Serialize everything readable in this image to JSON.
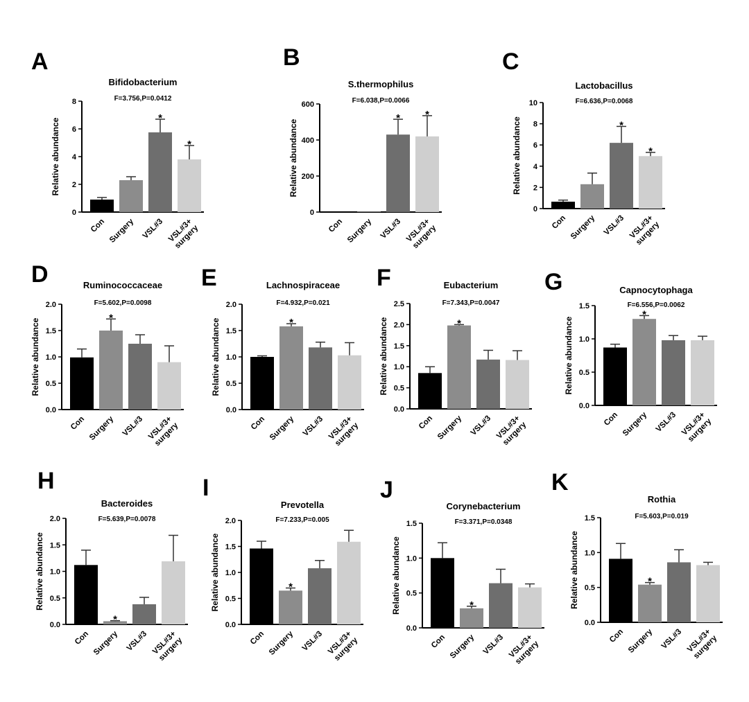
{
  "figure": {
    "bar_colors": [
      "#000000",
      "#8c8c8c",
      "#6e6e6e",
      "#cfcfcf"
    ],
    "error_bar_color": "#333333",
    "axis_color": "#000000"
  },
  "chart_data": [
    {
      "panel": "A",
      "type": "bar",
      "title": "Bifidobacterium",
      "subtitle": "F=3.756,P=0.0412",
      "ylabel": "Relative abundance",
      "ylim": [
        0,
        8
      ],
      "yticks": [
        "0",
        "2",
        "4",
        "6",
        "8"
      ],
      "categories": [
        "Con",
        "Surgery",
        "VSL#3",
        "VSL#3+ surgery"
      ],
      "values": [
        0.9,
        2.3,
        5.75,
        3.8
      ],
      "errors": [
        0.15,
        0.25,
        0.95,
        1.0
      ],
      "significant": [
        false,
        false,
        true,
        true
      ]
    },
    {
      "panel": "B",
      "type": "bar",
      "title": "S.thermophilus",
      "subtitle": "F=6.038,P=0.0066",
      "ylabel": "Relative abundance",
      "ylim": [
        0,
        600
      ],
      "yticks": [
        "0",
        "200",
        "400",
        "600"
      ],
      "categories": [
        "Con",
        "Surgery",
        "VSL#3",
        "VSL#3+ surgery"
      ],
      "values": [
        1,
        2,
        430,
        420
      ],
      "errors": [
        0,
        0,
        85,
        115
      ],
      "significant": [
        false,
        false,
        true,
        true
      ]
    },
    {
      "panel": "C",
      "type": "bar",
      "title": "Lactobacillus",
      "subtitle": "F=6.636,P=0.0068",
      "ylabel": "Relative abundance",
      "ylim": [
        0,
        10
      ],
      "yticks": [
        "0",
        "2",
        "4",
        "6",
        "8",
        "10"
      ],
      "categories": [
        "Con",
        "Surgery",
        "VSL#3",
        "VSL#3+ surgery"
      ],
      "values": [
        0.65,
        2.3,
        6.2,
        4.95
      ],
      "errors": [
        0.15,
        1.05,
        1.55,
        0.35
      ],
      "significant": [
        false,
        false,
        true,
        true
      ]
    },
    {
      "panel": "D",
      "type": "bar",
      "title": "Ruminococcaceae",
      "subtitle": "F=5.602,P=0.0098",
      "ylabel": "Relative abundance",
      "ylim": [
        0,
        2
      ],
      "yticks": [
        "0.0",
        "0.5",
        "1.0",
        "1.5",
        "2.0"
      ],
      "categories": [
        "Con",
        "Surgery",
        "VSL#3",
        "VSL#3+ surgery"
      ],
      "values": [
        0.99,
        1.5,
        1.25,
        0.9
      ],
      "errors": [
        0.16,
        0.22,
        0.17,
        0.31
      ],
      "significant": [
        false,
        true,
        false,
        false
      ]
    },
    {
      "panel": "E",
      "type": "bar",
      "title": "Lachnospiraceae",
      "subtitle": "F=4.932,P=0.021",
      "ylabel": "Relative abundance",
      "ylim": [
        0,
        2
      ],
      "yticks": [
        "0.0",
        "0.5",
        "1.0",
        "1.5",
        "2.0"
      ],
      "categories": [
        "Con",
        "Surgery",
        "VSL#3",
        "VSL#3+ surgery"
      ],
      "values": [
        1.0,
        1.58,
        1.18,
        1.03
      ],
      "errors": [
        0.02,
        0.05,
        0.1,
        0.24
      ],
      "significant": [
        false,
        true,
        false,
        false
      ]
    },
    {
      "panel": "F",
      "type": "bar",
      "title": "Eubacterium",
      "subtitle": "F=7.343,P=0.0047",
      "ylabel": "Relative abundance",
      "ylim": [
        0,
        2.5
      ],
      "yticks": [
        "0.0",
        "0.5",
        "1.0",
        "1.5",
        "2.0",
        "2.5"
      ],
      "categories": [
        "Con",
        "Surgery",
        "VSL#3",
        "VSL#3+ surgery"
      ],
      "values": [
        0.85,
        1.98,
        1.17,
        1.16
      ],
      "errors": [
        0.15,
        0.02,
        0.22,
        0.22
      ],
      "significant": [
        false,
        true,
        false,
        false
      ]
    },
    {
      "panel": "G",
      "type": "bar",
      "title": "Capnocytophaga",
      "subtitle": "F=6.556,P=0.0062",
      "ylabel": "Relative abundance",
      "ylim": [
        0,
        1.5
      ],
      "yticks": [
        "0.0",
        "0.5",
        "1.0",
        "1.5"
      ],
      "categories": [
        "Con",
        "Surgery",
        "VSL#3",
        "VSL#3+ surgery"
      ],
      "values": [
        0.87,
        1.3,
        0.98,
        0.98
      ],
      "errors": [
        0.05,
        0.05,
        0.07,
        0.06
      ],
      "significant": [
        false,
        true,
        false,
        false
      ]
    },
    {
      "panel": "H",
      "type": "bar",
      "title": "Bacteroides",
      "subtitle": "F=5.639,P=0.0078",
      "ylabel": "Relative abundance",
      "ylim": [
        0,
        2
      ],
      "yticks": [
        "0.0",
        "0.5",
        "1.0",
        "1.5",
        "2.0"
      ],
      "categories": [
        "Con",
        "Surgery",
        "VSL#3",
        "VSL#3+ surgery"
      ],
      "values": [
        1.12,
        0.06,
        0.38,
        1.19
      ],
      "errors": [
        0.28,
        0.01,
        0.13,
        0.49
      ],
      "significant": [
        false,
        true,
        false,
        false
      ]
    },
    {
      "panel": "I",
      "type": "bar",
      "title": "Prevotella",
      "subtitle": "F=7.233,P=0.005",
      "ylabel": "Relative abundance",
      "ylim": [
        0,
        2
      ],
      "yticks": [
        "0.0",
        "0.5",
        "1.0",
        "1.5",
        "2.0"
      ],
      "categories": [
        "Con",
        "Surgery",
        "VSL#3",
        "VSL#3+ surgery"
      ],
      "values": [
        1.46,
        0.65,
        1.08,
        1.59
      ],
      "errors": [
        0.14,
        0.05,
        0.15,
        0.22
      ],
      "significant": [
        false,
        true,
        false,
        false
      ]
    },
    {
      "panel": "J",
      "type": "bar",
      "title": "Corynebacterium",
      "subtitle": "F=3.371,P=0.0348",
      "ylabel": "Relative abundance",
      "ylim": [
        0,
        1.5
      ],
      "yticks": [
        "0.0",
        "0.5",
        "1.0",
        "1.5"
      ],
      "categories": [
        "Con",
        "Surgery",
        "VSL#3",
        "VSL#3+ surgery"
      ],
      "values": [
        1.0,
        0.28,
        0.64,
        0.58
      ],
      "errors": [
        0.22,
        0.03,
        0.2,
        0.05
      ],
      "significant": [
        false,
        true,
        false,
        false
      ]
    },
    {
      "panel": "K",
      "type": "bar",
      "title": "Rothia",
      "subtitle": "F=5.603,P=0.019",
      "ylabel": "Relative abundance",
      "ylim": [
        0,
        1.5
      ],
      "yticks": [
        "0.0",
        "0.5",
        "1.0",
        "1.5"
      ],
      "categories": [
        "Con",
        "Surgery",
        "VSL#3",
        "VSL#3+ surgery"
      ],
      "values": [
        0.91,
        0.54,
        0.86,
        0.82
      ],
      "errors": [
        0.22,
        0.03,
        0.18,
        0.04
      ],
      "significant": [
        false,
        true,
        false,
        false
      ]
    }
  ]
}
